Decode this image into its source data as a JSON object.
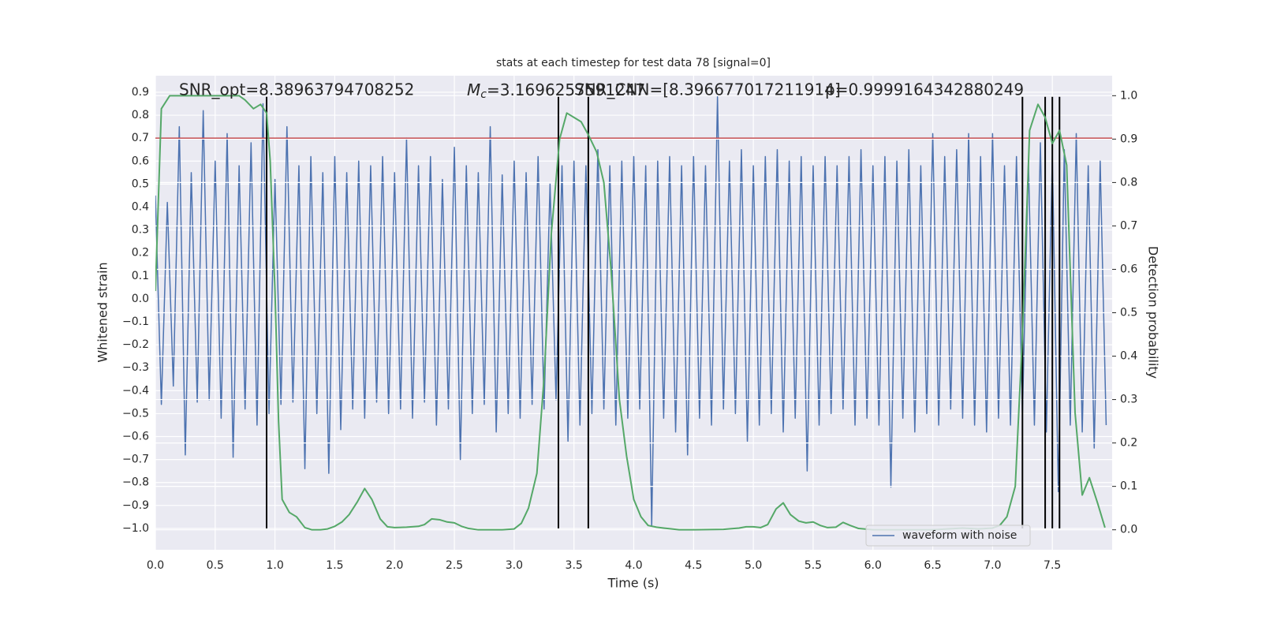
{
  "chart_data": {
    "type": "line",
    "title": "stats at each timestep for test data 78 [signal=0]",
    "xlabel": "Time (s)",
    "ylabel": "Whitened strain",
    "y2label": "Detection probability",
    "xlim": [
      0,
      8.0
    ],
    "ylim": [
      -1.093,
      0.972
    ],
    "y2lim": [
      -0.046,
      1.046
    ],
    "xticks": [
      {
        "value": 0,
        "label": "0.0"
      },
      0.5,
      {
        "value": 1,
        "label": "1.0"
      },
      1.5,
      {
        "value": 2,
        "label": "2.0"
      },
      2.5,
      {
        "value": 3,
        "label": "3.0"
      },
      3.5,
      {
        "value": 4,
        "label": "4.0"
      },
      4.5,
      {
        "value": 5,
        "label": "5.0"
      },
      5.5,
      {
        "value": 6,
        "label": "6.0"
      },
      6.5,
      {
        "value": 7,
        "label": "7.0"
      },
      7.5
    ],
    "yticks": [
      {
        "value": -1.0,
        "label": "−1.0"
      },
      {
        "value": -0.9,
        "label": "−0.9"
      },
      {
        "value": -0.8,
        "label": "−0.8"
      },
      {
        "value": -0.7,
        "label": "−0.7"
      },
      {
        "value": -0.6,
        "label": "−0.6"
      },
      {
        "value": -0.5,
        "label": "−0.5"
      },
      {
        "value": -0.4,
        "label": "−0.4"
      },
      {
        "value": -0.3,
        "label": "−0.3"
      },
      {
        "value": -0.2,
        "label": "−0.2"
      },
      {
        "value": -0.1,
        "label": "−0.1"
      },
      {
        "value": 0,
        "label": "0.0"
      },
      0.1,
      0.2,
      0.3,
      0.4,
      0.5,
      0.6,
      0.7,
      0.8,
      0.9
    ],
    "y2ticks": [
      {
        "value": 0,
        "label": "0.0"
      },
      0.1,
      0.2,
      0.3,
      0.4,
      0.5,
      0.6,
      0.7,
      0.8,
      0.9,
      {
        "value": 1,
        "label": "1.0"
      }
    ],
    "grid": true,
    "legend_loc": "lower right",
    "series": [
      {
        "name": "waveform with noise",
        "color": "#4c72b0",
        "x": [
          0,
          0.05,
          0.1,
          0.15,
          0.2,
          0.25,
          0.3,
          0.35,
          0.4,
          0.45,
          0.5,
          0.55,
          0.6,
          0.65,
          0.7,
          0.75,
          0.8,
          0.85,
          0.9,
          0.95,
          1,
          1.05,
          1.1,
          1.15,
          1.2,
          1.25,
          1.3,
          1.35,
          1.4,
          1.45,
          1.5,
          1.55,
          1.6,
          1.65,
          1.7,
          1.75,
          1.8,
          1.85,
          1.9,
          1.95,
          2,
          2.05,
          2.1,
          2.15,
          2.2,
          2.25,
          2.3,
          2.35,
          2.4,
          2.45,
          2.5,
          2.55,
          2.6,
          2.65,
          2.7,
          2.75,
          2.8,
          2.85,
          2.9,
          2.95,
          3,
          3.05,
          3.1,
          3.15,
          3.2,
          3.25,
          3.3,
          3.35,
          3.4,
          3.45,
          3.5,
          3.55,
          3.6,
          3.65,
          3.7,
          3.75,
          3.8,
          3.85,
          3.9,
          3.95,
          4,
          4.05,
          4.1,
          4.15,
          4.2,
          4.25,
          4.3,
          4.35,
          4.4,
          4.45,
          4.5,
          4.55,
          4.6,
          4.65,
          4.7,
          4.75,
          4.8,
          4.85,
          4.9,
          4.95,
          5,
          5.05,
          5.1,
          5.15,
          5.2,
          5.25,
          5.3,
          5.35,
          5.4,
          5.45,
          5.5,
          5.55,
          5.6,
          5.65,
          5.7,
          5.75,
          5.8,
          5.85,
          5.9,
          5.95,
          6,
          6.05,
          6.1,
          6.15,
          6.2,
          6.25,
          6.3,
          6.35,
          6.4,
          6.45,
          6.5,
          6.55,
          6.6,
          6.65,
          6.7,
          6.75,
          6.8,
          6.85,
          6.9,
          6.95,
          7,
          7.05,
          7.1,
          7.15,
          7.2,
          7.25,
          7.3,
          7.35,
          7.4,
          7.45,
          7.5,
          7.55,
          7.6,
          7.65,
          7.7,
          7.75,
          7.8,
          7.85,
          7.9,
          7.95
        ],
        "values": [
          0.45,
          -0.46,
          0.42,
          -0.38,
          0.75,
          -0.68,
          0.55,
          -0.45,
          0.82,
          -0.44,
          0.6,
          -0.52,
          0.72,
          -0.69,
          0.58,
          -0.48,
          0.68,
          -0.55,
          0.85,
          -0.5,
          0.52,
          -0.46,
          0.75,
          -0.45,
          0.58,
          -0.74,
          0.62,
          -0.5,
          0.55,
          -0.76,
          0.62,
          -0.57,
          0.55,
          -0.48,
          0.6,
          -0.52,
          0.58,
          -0.45,
          0.62,
          -0.5,
          0.55,
          -0.48,
          0.7,
          -0.52,
          0.58,
          -0.45,
          0.62,
          -0.55,
          0.52,
          -0.48,
          0.66,
          -0.7,
          0.58,
          -0.5,
          0.55,
          -0.46,
          0.75,
          -0.58,
          0.54,
          -0.5,
          0.6,
          -0.52,
          0.55,
          -0.46,
          0.62,
          -0.48,
          0.5,
          -0.44,
          0.58,
          -0.62,
          0.6,
          -0.55,
          0.58,
          -0.5,
          0.65,
          -0.48,
          0.58,
          -0.55,
          0.6,
          -0.52,
          0.62,
          -0.48,
          0.58,
          -0.99,
          0.6,
          -0.52,
          0.62,
          -0.58,
          0.58,
          -0.68,
          0.62,
          -0.52,
          0.58,
          -0.55,
          0.88,
          -0.48,
          0.6,
          -0.5,
          0.65,
          -0.62,
          0.58,
          -0.55,
          0.62,
          -0.5,
          0.65,
          -0.58,
          0.6,
          -0.52,
          0.62,
          -0.75,
          0.58,
          -0.55,
          0.62,
          -0.5,
          0.58,
          -0.48,
          0.62,
          -0.55,
          0.65,
          -0.52,
          0.58,
          -0.55,
          0.62,
          -0.82,
          0.6,
          -0.52,
          0.65,
          -0.58,
          0.58,
          -0.5,
          0.72,
          -0.55,
          0.62,
          -0.48,
          0.65,
          -0.52,
          0.72,
          -0.55,
          0.62,
          -0.58,
          0.72,
          -0.52,
          0.58,
          -0.55,
          0.62,
          -0.5,
          0.6,
          -0.55,
          0.68,
          -0.58,
          0.62,
          -0.84,
          0.65,
          -0.55,
          0.72,
          -0.58,
          0.58,
          -0.65,
          0.6,
          -0.55
        ]
      },
      {
        "color": "#55a868",
        "axis": "y2",
        "x": [
          0,
          0.05,
          0.12,
          0.3,
          0.5,
          0.7,
          0.75,
          0.82,
          0.88,
          0.93,
          0.96,
          1.0,
          1.03,
          1.06,
          1.12,
          1.18,
          1.25,
          1.31,
          1.38,
          1.44,
          1.5,
          1.56,
          1.62,
          1.69,
          1.75,
          1.81,
          1.88,
          1.94,
          2.0,
          2.1,
          2.2,
          2.25,
          2.31,
          2.38,
          2.44,
          2.5,
          2.56,
          2.62,
          2.7,
          2.8,
          2.9,
          3.0,
          3.06,
          3.12,
          3.19,
          3.25,
          3.31,
          3.38,
          3.44,
          3.5,
          3.56,
          3.62,
          3.69,
          3.75,
          3.81,
          3.88,
          3.94,
          4.0,
          4.06,
          4.12,
          4.19,
          4.25,
          4.38,
          4.5,
          4.75,
          4.88,
          4.94,
          5.0,
          5.06,
          5.12,
          5.19,
          5.25,
          5.31,
          5.38,
          5.44,
          5.5,
          5.56,
          5.62,
          5.69,
          5.75,
          5.81,
          5.88,
          6.0,
          6.5,
          6.62,
          6.75,
          6.88,
          7.0,
          7.06,
          7.12,
          7.19,
          7.25,
          7.31,
          7.38,
          7.44,
          7.5,
          7.56,
          7.62,
          7.69,
          7.75,
          7.81,
          7.88,
          7.94
        ],
        "values": [
          0.55,
          0.97,
          1.0,
          1.0,
          1.0,
          1.0,
          0.99,
          0.97,
          0.98,
          0.96,
          0.85,
          0.55,
          0.25,
          0.07,
          0.04,
          0.03,
          0.005,
          0.0,
          0.0,
          0.002,
          0.008,
          0.018,
          0.035,
          0.065,
          0.095,
          0.07,
          0.025,
          0.007,
          0.005,
          0.006,
          0.008,
          0.012,
          0.025,
          0.023,
          0.018,
          0.016,
          0.008,
          0.003,
          0.0,
          0.0,
          0.0,
          0.002,
          0.015,
          0.05,
          0.13,
          0.35,
          0.68,
          0.9,
          0.96,
          0.95,
          0.94,
          0.91,
          0.87,
          0.8,
          0.6,
          0.3,
          0.17,
          0.07,
          0.03,
          0.01,
          0.006,
          0.004,
          0.0,
          0.0,
          0.001,
          0.004,
          0.007,
          0.007,
          0.005,
          0.012,
          0.048,
          0.062,
          0.035,
          0.02,
          0.016,
          0.018,
          0.01,
          0.005,
          0.006,
          0.017,
          0.01,
          0.003,
          0.0,
          0.0,
          0.002,
          0.004,
          0.002,
          0.004,
          0.01,
          0.03,
          0.1,
          0.45,
          0.92,
          0.98,
          0.95,
          0.89,
          0.92,
          0.84,
          0.27,
          0.08,
          0.12,
          0.06,
          0.005
        ]
      }
    ],
    "hlines": [
      {
        "y": 0.7,
        "color": "#c44e52"
      }
    ],
    "vlines": {
      "x": [
        0.93,
        3.37,
        3.62,
        7.25,
        7.44,
        7.5,
        7.56
      ],
      "ymin": -1.0,
      "ymax": 0.88,
      "color": "#000000"
    },
    "annotations": [
      {
        "text": "SNR_opt=8.38963794708252"
      },
      {
        "symbol": "M",
        "subscript": "c",
        "text": "=3.1696257591247"
      },
      {
        "text": "SNR_CNN=[8.396677017211914]"
      },
      {
        "text": "p=0.9999164342880249"
      }
    ]
  }
}
